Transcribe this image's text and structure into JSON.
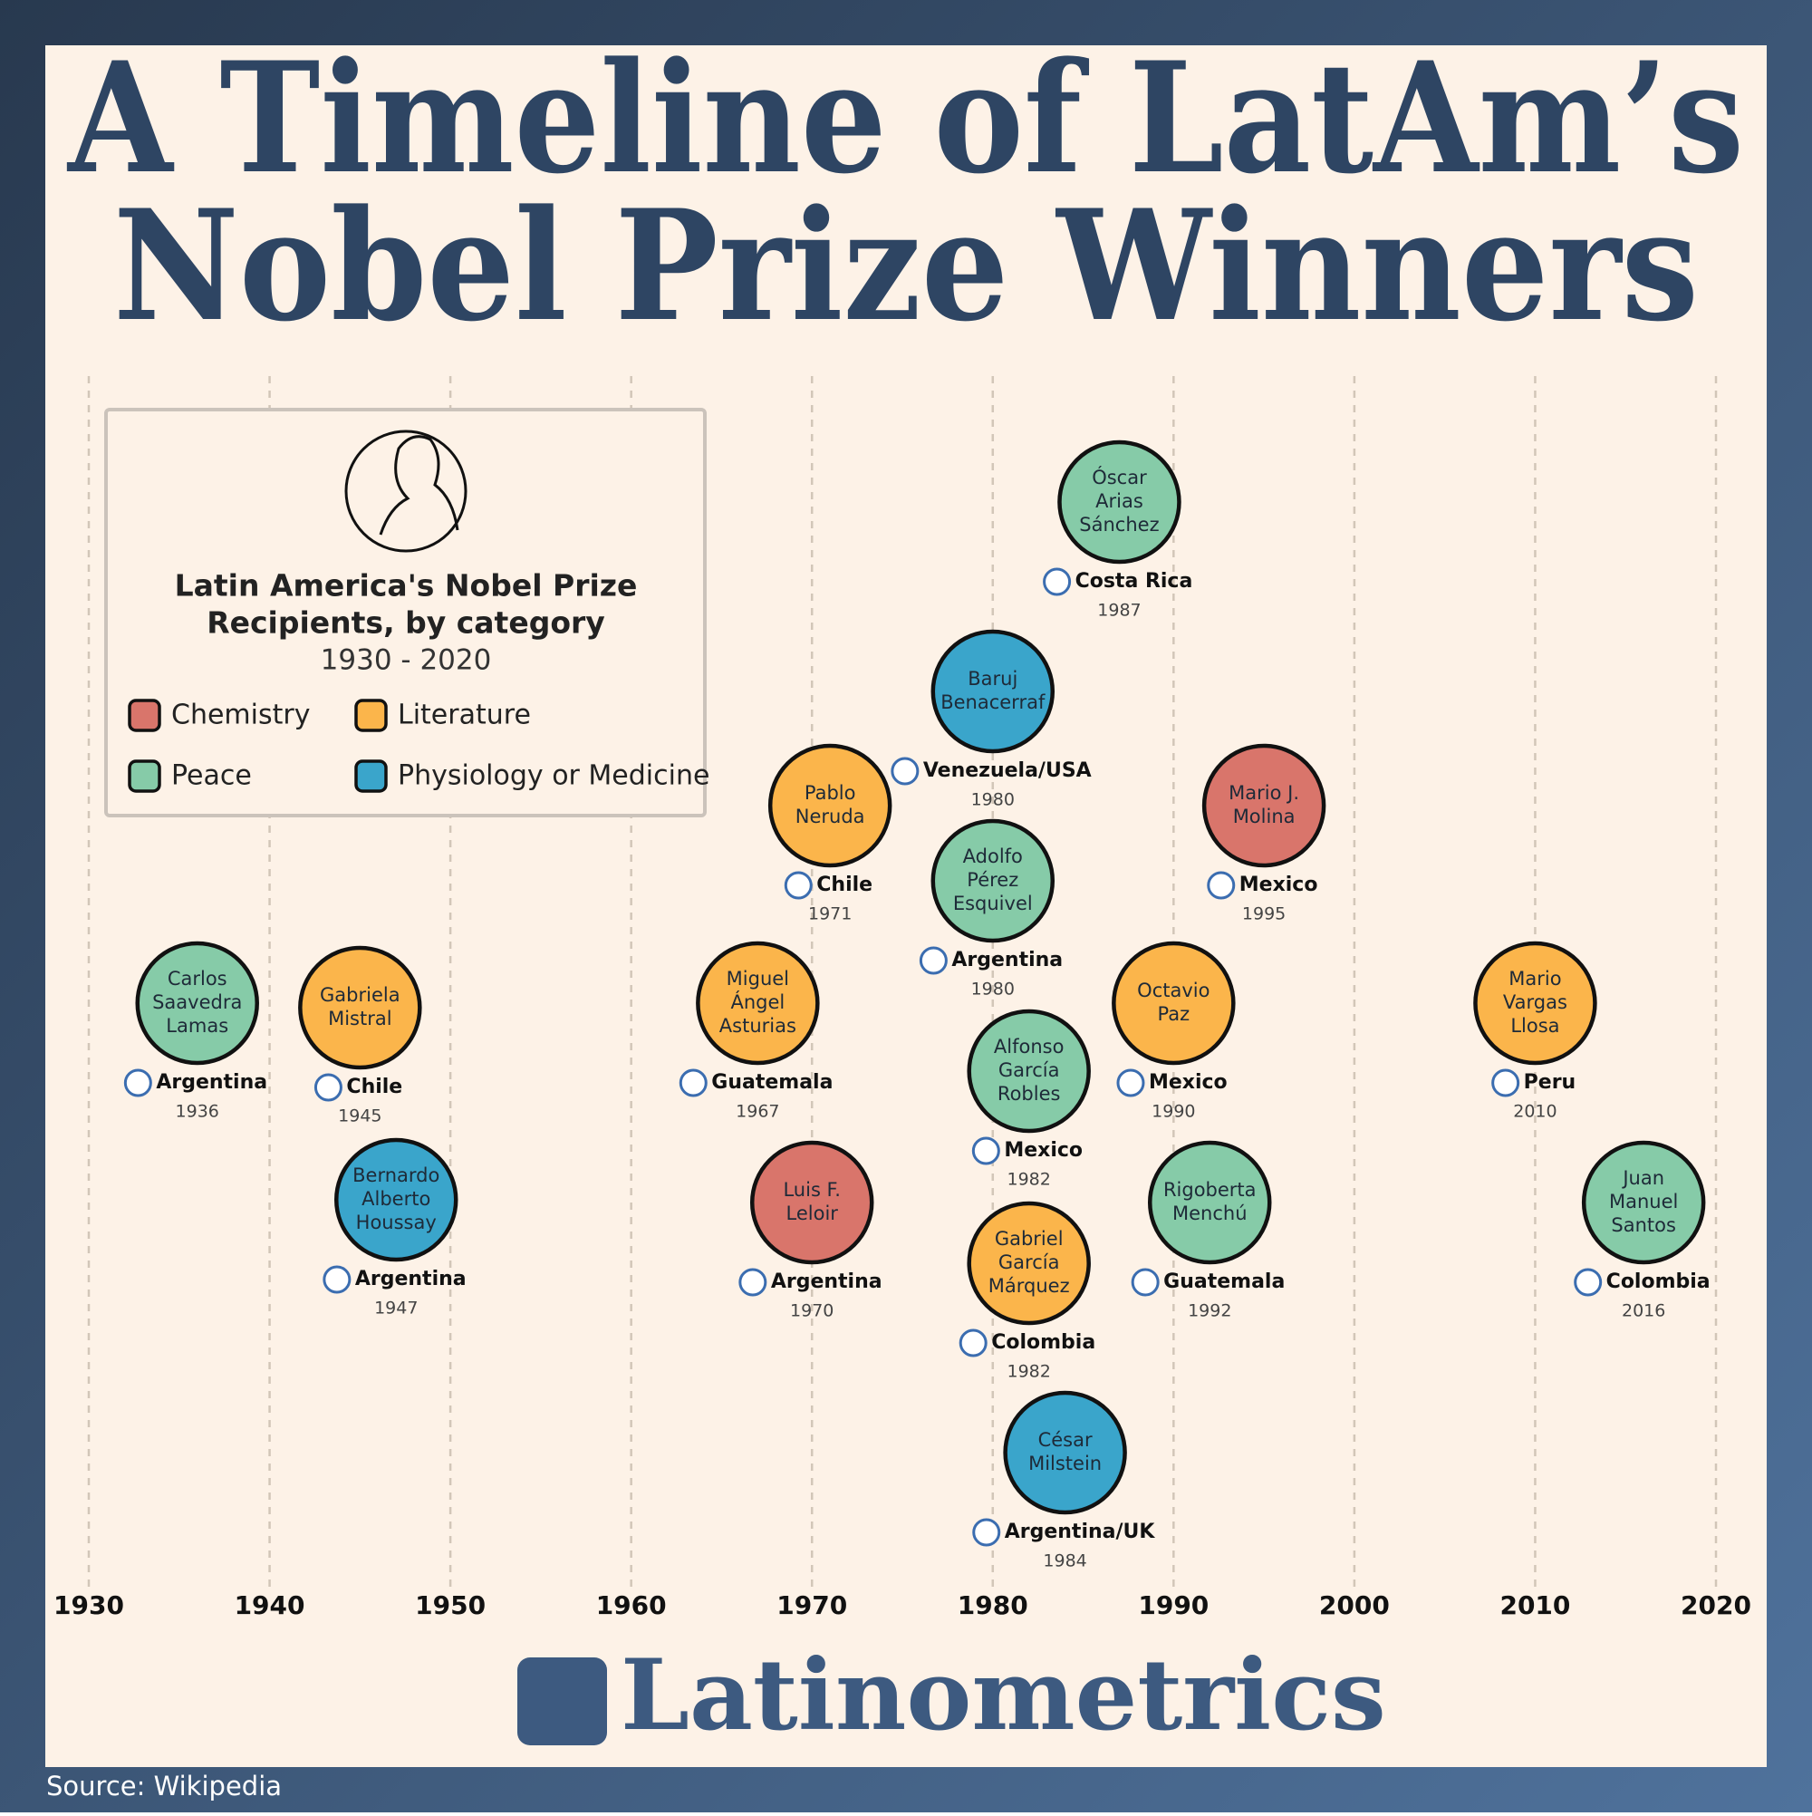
{
  "chart_data": {
    "type": "timeline",
    "title": [
      "A Timeline of LatAm’s",
      "Nobel Prize Winners"
    ],
    "legend_title": [
      "Latin America's Nobel Prize",
      "Recipients, by category"
    ],
    "subtitle": "1930 - 2020",
    "legend": [
      {
        "name": "Chemistry",
        "color": "#d9756b"
      },
      {
        "name": "Literature",
        "color": "#fbb54b"
      },
      {
        "name": "Peace",
        "color": "#86cba8"
      },
      {
        "name": "Physiology or Medicine",
        "color": "#3aa5cb"
      }
    ],
    "xlim": [
      1930,
      2020
    ],
    "xticks": [
      1930,
      1940,
      1950,
      1960,
      1970,
      1980,
      1990,
      2000,
      2010,
      2020
    ],
    "grid": true,
    "winners": [
      {
        "name": [
          "Carlos",
          "Saavedra",
          "Lamas"
        ],
        "country": "Argentina",
        "year": 1936,
        "category": "Peace"
      },
      {
        "name": [
          "Gabriela",
          "Mistral"
        ],
        "country": "Chile",
        "year": 1945,
        "category": "Literature"
      },
      {
        "name": [
          "Bernardo",
          "Alberto",
          "Houssay"
        ],
        "country": "Argentina",
        "year": 1947,
        "category": "Physiology or Medicine"
      },
      {
        "name": [
          "Miguel",
          "Ángel",
          "Asturias"
        ],
        "country": "Guatemala",
        "year": 1967,
        "category": "Literature"
      },
      {
        "name": [
          "Luis F.",
          "Leloir"
        ],
        "country": "Argentina",
        "year": 1970,
        "category": "Chemistry"
      },
      {
        "name": [
          "Pablo",
          "Neruda"
        ],
        "country": "Chile",
        "year": 1971,
        "category": "Literature"
      },
      {
        "name": [
          "Adolfo",
          "Pérez",
          "Esquivel"
        ],
        "country": "Argentina",
        "year": 1980,
        "category": "Peace"
      },
      {
        "name": [
          "Baruj",
          "Benacerraf"
        ],
        "country": "Venezuela/USA",
        "year": 1980,
        "category": "Physiology or Medicine"
      },
      {
        "name": [
          "Alfonso",
          "García",
          "Robles"
        ],
        "country": "Mexico",
        "year": 1982,
        "category": "Peace"
      },
      {
        "name": [
          "Gabriel",
          "García",
          "Márquez"
        ],
        "country": "Colombia",
        "year": 1982,
        "category": "Literature"
      },
      {
        "name": [
          "César",
          "Milstein"
        ],
        "country": "Argentina/UK",
        "year": 1984,
        "category": "Physiology or Medicine"
      },
      {
        "name": [
          "Óscar",
          "Arias",
          "Sánchez"
        ],
        "country": "Costa Rica",
        "year": 1987,
        "category": "Peace"
      },
      {
        "name": [
          "Octavio",
          "Paz"
        ],
        "country": "Mexico",
        "year": 1990,
        "category": "Literature"
      },
      {
        "name": [
          "Rigoberta",
          "Menchú"
        ],
        "country": "Guatemala",
        "year": 1992,
        "category": "Peace"
      },
      {
        "name": [
          "Mario J.",
          "Molina"
        ],
        "country": "Mexico",
        "year": 1995,
        "category": "Chemistry"
      },
      {
        "name": [
          "Mario",
          "Vargas",
          "Llosa"
        ],
        "country": "Peru",
        "year": 2010,
        "category": "Literature"
      },
      {
        "name": [
          "Juan",
          "Manuel",
          "Santos"
        ],
        "country": "Colombia",
        "year": 2016,
        "category": "Peace"
      }
    ],
    "source": "Source: Wikipedia",
    "brand": "Latinometrics"
  }
}
